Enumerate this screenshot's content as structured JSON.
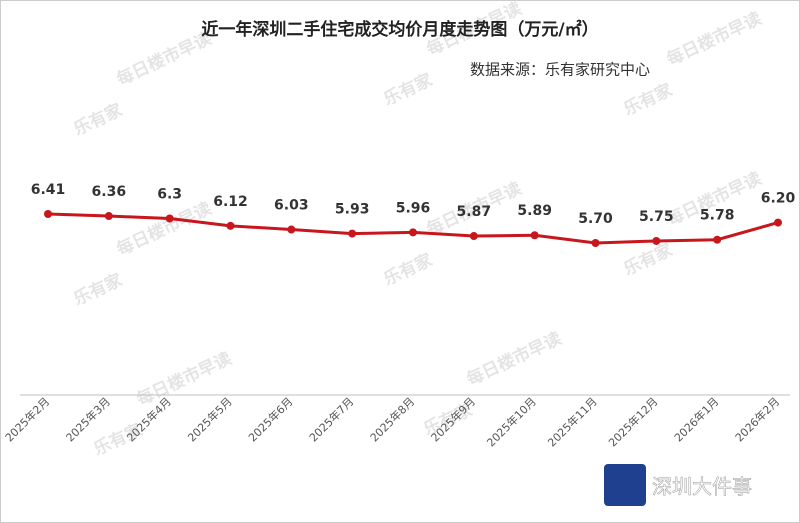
{
  "chart_data": {
    "type": "line",
    "title": "近一年深圳二手住宅成交均价月度走势图（万元/㎡）",
    "source": "数据来源：乐有家研究中心",
    "watermark": {
      "brand": "乐有家",
      "text": "每日楼市早读"
    },
    "logo": "深圳大件事",
    "categories": [
      "2025年2月",
      "2025年3月",
      "2025年4月",
      "2025年5月",
      "2025年6月",
      "2025年7月",
      "2025年8月",
      "2025年9月",
      "2025年10月",
      "2025年11月",
      "2025年12月",
      "2026年1月",
      "2026年2月"
    ],
    "series": [
      {
        "color": "#c8161d",
        "values": [
          6.41,
          6.36,
          6.3,
          6.12,
          6.03,
          5.93,
          5.96,
          5.87,
          5.89,
          5.7,
          5.75,
          5.78,
          6.2
        ],
        "value_labels": [
          "6.41",
          "6.36",
          "6.3",
          "6.12",
          "6.03",
          "5.93",
          "5.96",
          "5.87",
          "5.89",
          "5.70",
          "5.75",
          "5.78",
          "6.20"
        ]
      }
    ]
  }
}
